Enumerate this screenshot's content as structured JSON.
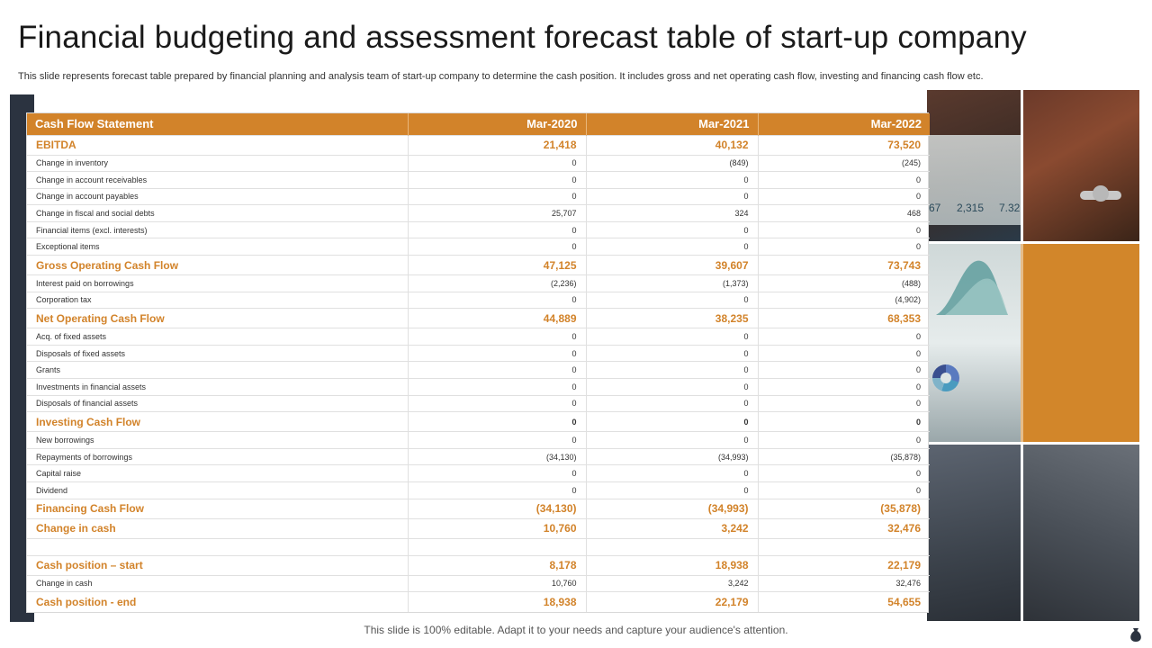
{
  "title": "Financial budgeting and assessment forecast table of start-up company",
  "subtitle": "This slide represents forecast table prepared by financial planning and analysis team of start-up company to determine the cash position. It includes gross and net operating cash flow, investing and financing cash flow etc.",
  "table": {
    "headers": [
      "Cash Flow Statement",
      "Mar-2020",
      "Mar-2021",
      "Mar-2022"
    ],
    "rows": [
      {
        "label": "EBITDA",
        "v1": "21,418",
        "v2": "40,132",
        "v3": "73,520",
        "type": "sum"
      },
      {
        "label": "Change in inventory",
        "v1": "0",
        "v2": "(849)",
        "v3": "(245)",
        "type": "item"
      },
      {
        "label": "Change in account receivables",
        "v1": "0",
        "v2": "0",
        "v3": "0",
        "type": "item"
      },
      {
        "label": "Change in account payables",
        "v1": "0",
        "v2": "0",
        "v3": "0",
        "type": "item"
      },
      {
        "label": "Change in fiscal and social debts",
        "v1": "25,707",
        "v2": "324",
        "v3": "468",
        "type": "item"
      },
      {
        "label": "Financial items (excl. interests)",
        "v1": "0",
        "v2": "0",
        "v3": "0",
        "type": "item"
      },
      {
        "label": "Exceptional items",
        "v1": "0",
        "v2": "0",
        "v3": "0",
        "type": "item"
      },
      {
        "label": "Gross Operating Cash Flow",
        "v1": "47,125",
        "v2": "39,607",
        "v3": "73,743",
        "type": "sum"
      },
      {
        "label": "Interest paid on borrowings",
        "v1": "(2,236)",
        "v2": "(1,373)",
        "v3": "(488)",
        "type": "item"
      },
      {
        "label": "Corporation tax",
        "v1": "0",
        "v2": "0",
        "v3": "(4,902)",
        "type": "item"
      },
      {
        "label": "Net Operating Cash Flow",
        "v1": "44,889",
        "v2": "38,235",
        "v3": "68,353",
        "type": "sum"
      },
      {
        "label": "Acq. of fixed assets",
        "v1": "0",
        "v2": "0",
        "v3": "0",
        "type": "item"
      },
      {
        "label": "Disposals of fixed assets",
        "v1": "0",
        "v2": "0",
        "v3": "0",
        "type": "item"
      },
      {
        "label": "Grants",
        "v1": "0",
        "v2": "0",
        "v3": "0",
        "type": "item"
      },
      {
        "label": "Investments in financial assets",
        "v1": "0",
        "v2": "0",
        "v3": "0",
        "type": "item"
      },
      {
        "label": "Disposals of financial assets",
        "v1": "0",
        "v2": "0",
        "v3": "0",
        "type": "item"
      },
      {
        "label": "Investing Cash Flow",
        "v1": "0",
        "v2": "0",
        "v3": "0",
        "type": "sum-zero"
      },
      {
        "label": "New borrowings",
        "v1": "0",
        "v2": "0",
        "v3": "0",
        "type": "item"
      },
      {
        "label": "Repayments of borrowings",
        "v1": "(34,130)",
        "v2": "(34,993)",
        "v3": "(35,878)",
        "type": "item"
      },
      {
        "label": "Capital raise",
        "v1": "0",
        "v2": "0",
        "v3": "0",
        "type": "item"
      },
      {
        "label": "Dividend",
        "v1": "0",
        "v2": "0",
        "v3": "0",
        "type": "item"
      },
      {
        "label": "Financing  Cash Flow",
        "v1": "(34,130)",
        "v2": "(34,993)",
        "v3": "(35,878)",
        "type": "sum"
      },
      {
        "label": "Change in cash",
        "v1": "10,760",
        "v2": "3,242",
        "v3": "32,476",
        "type": "sum"
      },
      {
        "label": "",
        "v1": "",
        "v2": "",
        "v3": "",
        "type": "blank"
      },
      {
        "label": "Cash position – start",
        "v1": "8,178",
        "v2": "18,938",
        "v3": "22,179",
        "type": "sum"
      },
      {
        "label": "Change in cash",
        "v1": "10,760",
        "v2": "3,242",
        "v3": "32,476",
        "type": "item"
      },
      {
        "label": "Cash position  - end",
        "v1": "18,938",
        "v2": "22,179",
        "v3": "54,655",
        "type": "sum"
      }
    ]
  },
  "photo_screen_numbers": [
    "67",
    "2,315",
    "7.32"
  ],
  "footer": "This slide is 100% editable. Adapt it to your needs and capture your audience's attention.",
  "icons": {
    "bag": "money-bag-icon"
  },
  "colors": {
    "accent": "#d2832a",
    "dark_panel": "#2b3340"
  }
}
